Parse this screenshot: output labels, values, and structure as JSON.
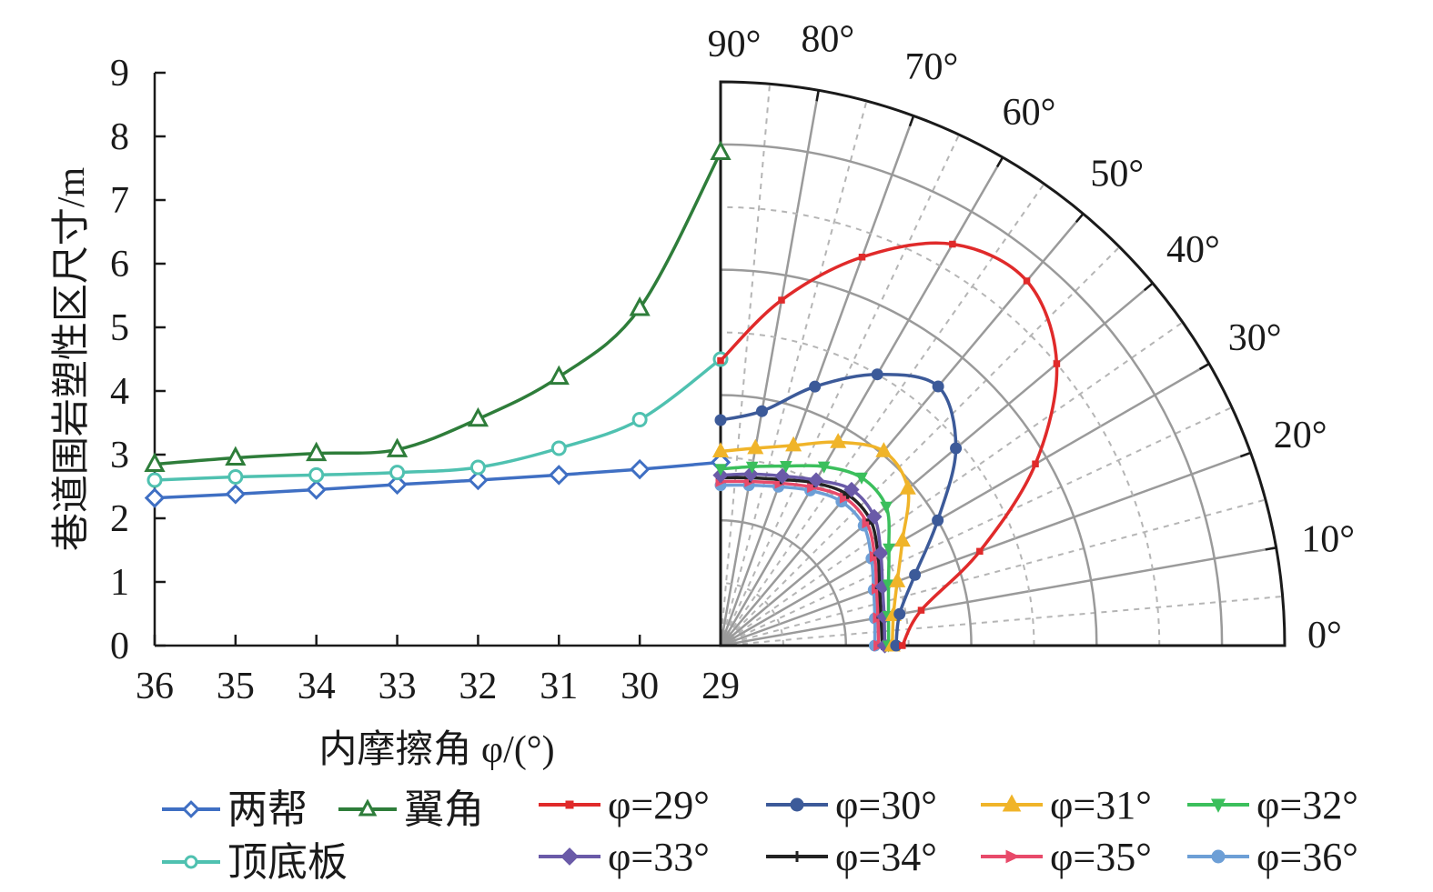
{
  "chart_data": [
    {
      "type": "line",
      "xlabel": "内摩擦角 φ/(°)",
      "ylabel": "巷道围岩塑性区尺寸/m",
      "x": [
        36,
        35,
        34,
        33,
        32,
        31,
        30,
        29
      ],
      "x_ticks": [
        "36",
        "35",
        "34",
        "33",
        "32",
        "31",
        "30",
        "29"
      ],
      "ylim": [
        0,
        9
      ],
      "y_ticks": [
        "0",
        "1",
        "2",
        "3",
        "4",
        "5",
        "6",
        "7",
        "8",
        "9"
      ],
      "series": [
        {
          "name": "两帮",
          "marker": "diamond-open",
          "color": "#3f6fc3",
          "values": [
            2.32,
            2.38,
            2.45,
            2.53,
            2.6,
            2.68,
            2.77,
            2.88
          ]
        },
        {
          "name": "翼角",
          "marker": "triangle-open",
          "color": "#2e7d3a",
          "values": [
            2.85,
            2.95,
            3.02,
            3.08,
            3.56,
            4.22,
            5.3,
            7.75
          ]
        },
        {
          "name": "顶底板",
          "marker": "circle-open",
          "color": "#4fc1b0",
          "values": [
            2.6,
            2.65,
            2.68,
            2.72,
            2.8,
            3.1,
            3.55,
            4.5
          ]
        }
      ]
    },
    {
      "type": "line",
      "subtype": "polar",
      "theta_ticks": [
        "0°",
        "10°",
        "20°",
        "30°",
        "40°",
        "50°",
        "60°",
        "70°",
        "80°",
        "90°"
      ],
      "radial_range": [
        0,
        9
      ],
      "grid": true,
      "theta": [
        0,
        10,
        20,
        30,
        40,
        50,
        60,
        70,
        80,
        90
      ],
      "series": [
        {
          "name": "φ=29°",
          "color": "#e02a2a",
          "marker": "square",
          "r": [
            2.9,
            3.25,
            4.4,
            5.8,
            7.0,
            7.6,
            7.4,
            6.6,
            5.6,
            4.55
          ]
        },
        {
          "name": "φ=30°",
          "color": "#3c5a99",
          "marker": "circle",
          "r": [
            2.8,
            2.9,
            3.3,
            4.0,
            4.9,
            5.4,
            5.0,
            4.4,
            3.8,
            3.6
          ]
        },
        {
          "name": "φ=31°",
          "color": "#f0b429",
          "marker": "triangle",
          "r": [
            2.74,
            2.8,
            3.0,
            3.35,
            3.9,
            4.05,
            3.75,
            3.4,
            3.2,
            3.1
          ]
        },
        {
          "name": "φ=32°",
          "color": "#3bbf5c",
          "marker": "triangle-down",
          "r": [
            2.68,
            2.72,
            2.85,
            3.1,
            3.45,
            3.5,
            3.3,
            3.05,
            2.9,
            2.82
          ]
        },
        {
          "name": "φ=33°",
          "color": "#6a5aa8",
          "marker": "diamond",
          "r": [
            2.62,
            2.65,
            2.75,
            2.95,
            3.2,
            3.25,
            3.05,
            2.88,
            2.78,
            2.72
          ]
        },
        {
          "name": "φ=34°",
          "color": "#222222",
          "marker": "star",
          "r": [
            2.58,
            2.6,
            2.7,
            2.9,
            3.12,
            3.15,
            3.0,
            2.82,
            2.72,
            2.68
          ]
        },
        {
          "name": "φ=35°",
          "color": "#e84a6a",
          "marker": "triangle-right",
          "r": [
            2.52,
            2.55,
            2.65,
            2.84,
            3.05,
            3.08,
            2.92,
            2.76,
            2.66,
            2.62
          ]
        },
        {
          "name": "φ=36°",
          "color": "#6d9fd6",
          "marker": "circle",
          "r": [
            2.46,
            2.5,
            2.6,
            2.78,
            2.98,
            3.0,
            2.86,
            2.7,
            2.6,
            2.56
          ]
        }
      ]
    }
  ],
  "legend": {
    "left": [
      "两帮",
      "翼角",
      "顶底板"
    ],
    "right": [
      "φ=29°",
      "φ=30°",
      "φ=31°",
      "φ=32°",
      "φ=33°",
      "φ=34°",
      "φ=35°",
      "φ=36°"
    ]
  }
}
